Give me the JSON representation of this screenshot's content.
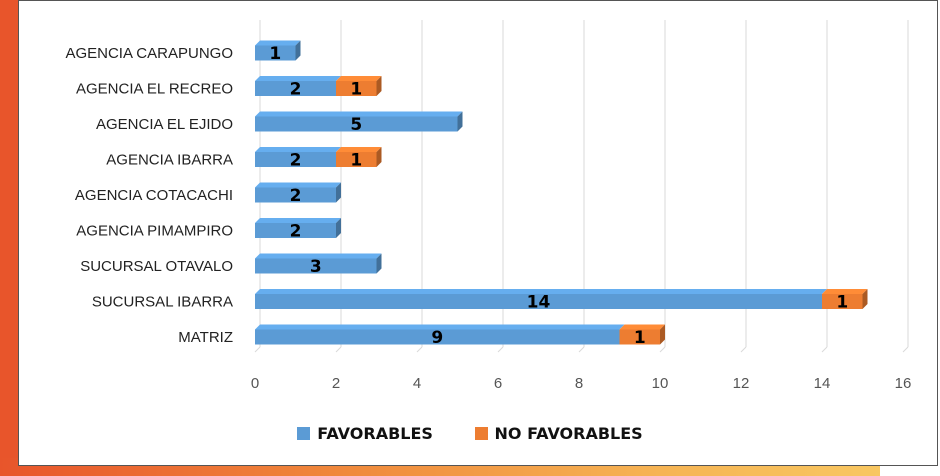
{
  "chart_data": {
    "type": "bar",
    "orientation": "horizontal",
    "stacked": true,
    "style": "3d",
    "categories": [
      "AGENCIA CARAPUNGO",
      "AGENCIA EL RECREO",
      "AGENCIA EL EJIDO",
      "AGENCIA IBARRA",
      "AGENCIA COTACACHI",
      "AGENCIA PIMAMPIRO",
      "SUCURSAL OTAVALO",
      "SUCURSAL IBARRA",
      "MATRIZ"
    ],
    "series": [
      {
        "name": "FAVORABLES",
        "color": "#5b9bd5",
        "values": [
          1,
          2,
          5,
          2,
          2,
          2,
          3,
          14,
          9
        ]
      },
      {
        "name": "NO FAVORABLES",
        "color": "#ed7d31",
        "values": [
          0,
          1,
          0,
          1,
          0,
          0,
          0,
          1,
          1
        ]
      }
    ],
    "xlim": [
      0,
      16
    ],
    "xticks": [
      0,
      2,
      4,
      6,
      8,
      10,
      12,
      14,
      16
    ],
    "grid": "vertical",
    "legend_position": "bottom"
  }
}
